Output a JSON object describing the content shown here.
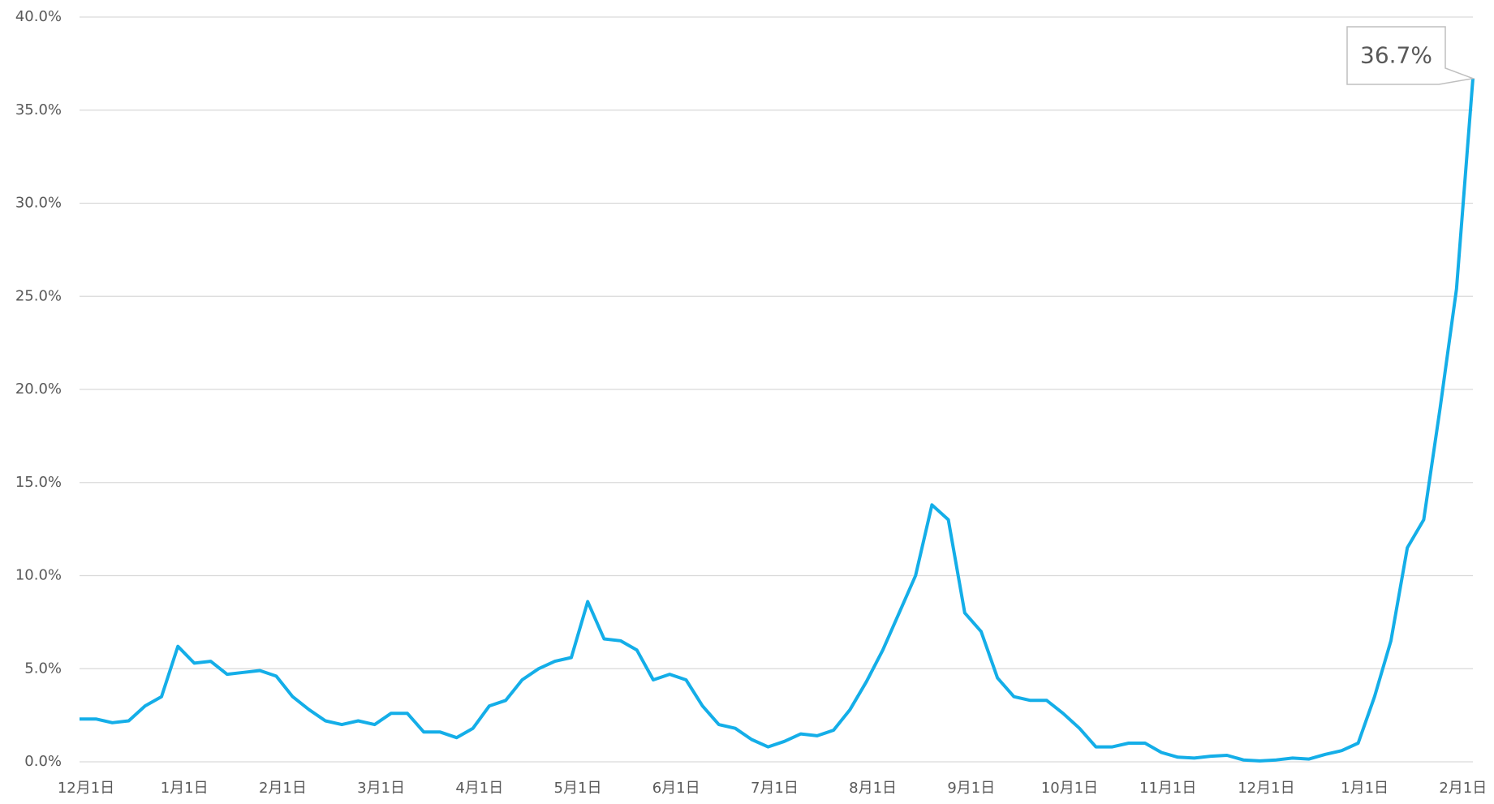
{
  "chart_data": {
    "type": "line",
    "categories": [
      "12月1日",
      null,
      null,
      null,
      null,
      null,
      "1月1日",
      null,
      null,
      null,
      null,
      null,
      "2月1日",
      null,
      null,
      null,
      null,
      null,
      "3月1日",
      null,
      null,
      null,
      null,
      null,
      "4月1日",
      null,
      null,
      null,
      null,
      null,
      "5月1日",
      null,
      null,
      null,
      null,
      null,
      "6月1日",
      null,
      null,
      null,
      null,
      null,
      "7月1日",
      null,
      null,
      null,
      null,
      null,
      "8月1日",
      null,
      null,
      null,
      null,
      null,
      "9月1日",
      null,
      null,
      null,
      null,
      null,
      "10月1日",
      null,
      null,
      null,
      null,
      null,
      "11月1日",
      null,
      null,
      null,
      null,
      null,
      "12月1日",
      null,
      null,
      null,
      null,
      null,
      "1月1日",
      null,
      null,
      null,
      null,
      null,
      "2月1日",
      null
    ],
    "values": [
      2.3,
      2.3,
      2.1,
      2.2,
      3.0,
      3.5,
      6.2,
      5.3,
      5.4,
      4.7,
      4.8,
      4.9,
      4.6,
      3.5,
      2.8,
      2.2,
      2.0,
      2.2,
      2.0,
      2.6,
      2.6,
      1.6,
      1.6,
      1.3,
      1.8,
      3.0,
      3.3,
      4.4,
      5.0,
      5.4,
      5.6,
      8.6,
      6.6,
      6.5,
      6.0,
      4.4,
      4.7,
      4.4,
      3.0,
      2.0,
      1.8,
      1.2,
      0.8,
      1.1,
      1.5,
      1.4,
      1.7,
      2.8,
      4.3,
      6.0,
      8.0,
      10.0,
      13.8,
      13.0,
      8.0,
      7.0,
      4.5,
      3.5,
      3.3,
      3.3,
      2.6,
      1.8,
      0.8,
      0.8,
      1.0,
      1.0,
      0.5,
      0.25,
      0.2,
      0.3,
      0.35,
      0.1,
      0.05,
      0.1,
      0.2,
      0.15,
      0.4,
      0.6,
      1.0,
      3.5,
      6.5,
      11.5,
      13.0,
      19.0,
      25.4,
      36.7
    ],
    "value_labels": [
      null,
      null,
      null,
      null,
      null,
      null,
      null,
      null,
      null,
      null,
      null,
      null,
      null,
      null,
      null,
      null,
      null,
      null,
      null,
      null,
      null,
      null,
      null,
      null,
      null,
      null,
      null,
      null,
      null,
      null,
      null,
      null,
      null,
      null,
      null,
      null,
      null,
      null,
      null,
      null,
      null,
      null,
      null,
      null,
      null,
      null,
      null,
      null,
      null,
      null,
      null,
      null,
      null,
      null,
      null,
      null,
      null,
      null,
      null,
      null,
      null,
      null,
      null,
      null,
      null,
      null,
      null,
      null,
      null,
      null,
      null,
      null,
      null,
      null,
      null,
      null,
      null,
      null,
      null,
      null,
      null,
      null,
      null,
      null,
      null,
      "36.7%"
    ],
    "color": "#14aee8",
    "ylim": [
      0,
      40
    ],
    "yticks": [
      {
        "value": 0,
        "label": "0.0%"
      },
      {
        "value": 5,
        "label": "5.0%"
      },
      {
        "value": 10,
        "label": "10.0%"
      },
      {
        "value": 15,
        "label": "15.0%"
      },
      {
        "value": 20,
        "label": "20.0%"
      },
      {
        "value": 25,
        "label": "25.0%"
      },
      {
        "value": 30,
        "label": "30.0%"
      },
      {
        "value": 35,
        "label": "35.0%"
      },
      {
        "value": 40,
        "label": "40.0%"
      }
    ],
    "grid": true
  }
}
